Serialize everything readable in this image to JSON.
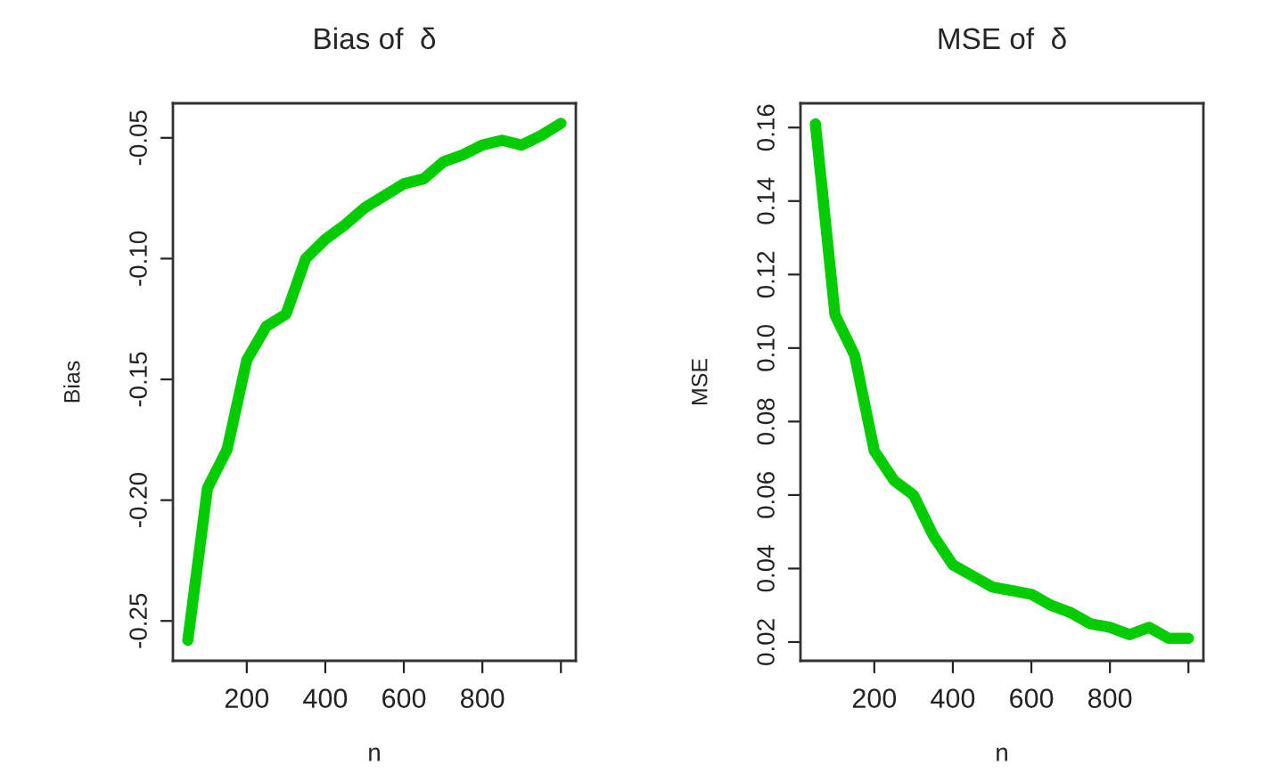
{
  "chart_data": [
    {
      "type": "line",
      "title": "Bias of  δ",
      "xlabel": "n",
      "ylabel": "Bias",
      "x": [
        50,
        100,
        150,
        200,
        250,
        300,
        350,
        400,
        450,
        500,
        550,
        600,
        650,
        700,
        750,
        800,
        850,
        900,
        950,
        1000
      ],
      "series": [
        {
          "color": "#00cc00",
          "values": [
            -0.258,
            -0.195,
            -0.179,
            -0.142,
            -0.128,
            -0.123,
            -0.1,
            -0.092,
            -0.086,
            -0.079,
            -0.074,
            -0.069,
            -0.067,
            -0.06,
            -0.057,
            -0.053,
            -0.051,
            -0.053,
            -0.049,
            -0.044
          ]
        }
      ],
      "xlim": [
        12,
        1038
      ],
      "ylim": [
        -0.2665,
        -0.0357
      ],
      "xticks": [
        200,
        400,
        600,
        800,
        {
          "value": 1000,
          "label": null
        }
      ],
      "yticks": [
        {
          "value": -0.25,
          "label": "-0.25"
        },
        {
          "value": -0.2,
          "label": "-0.20"
        },
        {
          "value": -0.15,
          "label": "-0.15"
        },
        {
          "value": -0.1,
          "label": "-0.10"
        },
        {
          "value": -0.05,
          "label": "-0.05"
        }
      ]
    },
    {
      "type": "line",
      "title": "MSE of  δ",
      "xlabel": "n",
      "ylabel": "MSE",
      "x": [
        50,
        100,
        150,
        200,
        250,
        300,
        350,
        400,
        450,
        500,
        550,
        600,
        650,
        700,
        750,
        800,
        850,
        900,
        950,
        1000
      ],
      "series": [
        {
          "color": "#00cc00",
          "values": [
            0.161,
            0.109,
            0.098,
            0.072,
            0.064,
            0.06,
            0.049,
            0.041,
            0.038,
            0.035,
            0.034,
            0.033,
            0.03,
            0.028,
            0.025,
            0.024,
            0.022,
            0.024,
            0.021,
            0.021
          ]
        }
      ],
      "xlim": [
        12,
        1038
      ],
      "ylim": [
        0.0149,
        0.1666
      ],
      "xticks": [
        200,
        400,
        600,
        800,
        {
          "value": 1000,
          "label": null
        }
      ],
      "yticks": [
        {
          "value": 0.02,
          "label": "0.02"
        },
        {
          "value": 0.04,
          "label": "0.04"
        },
        {
          "value": 0.06,
          "label": "0.06"
        },
        {
          "value": 0.08,
          "label": "0.08"
        },
        {
          "value": 0.1,
          "label": "0.10"
        },
        {
          "value": 0.12,
          "label": "0.12"
        },
        {
          "value": 0.14,
          "label": "0.14"
        },
        {
          "value": 0.16,
          "label": "0.16"
        }
      ]
    }
  ]
}
